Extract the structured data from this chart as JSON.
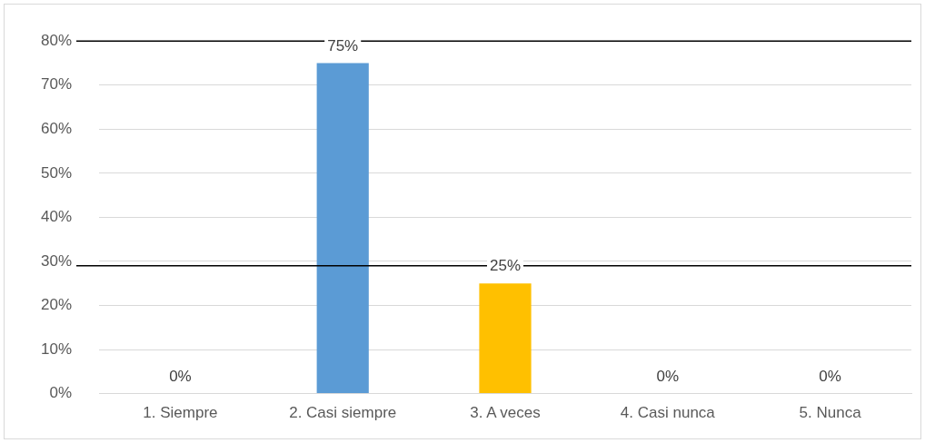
{
  "chart_data": {
    "type": "bar",
    "categories": [
      "1. Siempre",
      "2. Casi siempre",
      "3. A veces",
      "4. Casi nunca",
      "5. Nunca"
    ],
    "values": [
      0,
      75,
      25,
      0,
      0
    ],
    "colors": [
      "#5b9bd5",
      "#5b9bd5",
      "#ffc000",
      "#5b9bd5",
      "#5b9bd5"
    ],
    "value_labels": [
      "0%",
      "75%",
      "25%",
      "0%",
      "0%"
    ],
    "ylim": [
      0,
      80
    ],
    "yticks": [
      {
        "value": 0,
        "label": "0%"
      },
      {
        "value": 10,
        "label": "10%"
      },
      {
        "value": 20,
        "label": "20%"
      },
      {
        "value": 30,
        "label": "30%"
      },
      {
        "value": 40,
        "label": "40%"
      },
      {
        "value": 50,
        "label": "50%"
      },
      {
        "value": 60,
        "label": "60%"
      },
      {
        "value": 70,
        "label": "70%"
      },
      {
        "value": 80,
        "label": "80%"
      }
    ],
    "ref_lines": [
      {
        "axis": "y",
        "value": 80,
        "color": "#000000"
      },
      {
        "axis": "y",
        "value": 29,
        "color": "#000000"
      }
    ],
    "grid": "y",
    "legend": false
  }
}
